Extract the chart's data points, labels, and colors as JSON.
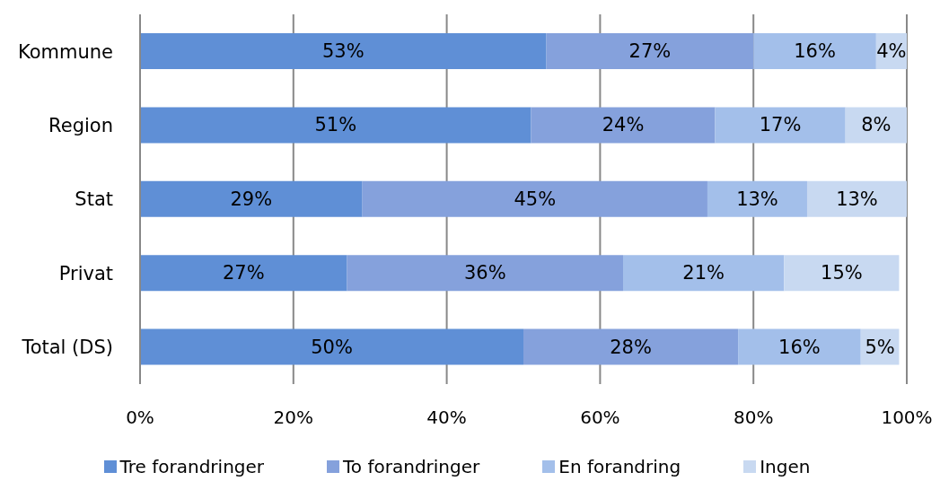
{
  "chart_data": {
    "type": "bar",
    "orientation": "horizontal",
    "stacked": true,
    "categories": [
      "Kommune",
      "Region",
      "Stat",
      "Privat",
      "Total (DS)"
    ],
    "series": [
      {
        "name": "Tre forandringer",
        "color": "#5f8fd6",
        "values": [
          53,
          51,
          29,
          27,
          50
        ],
        "value_labels": [
          "53%",
          "51%",
          "29%",
          "27%",
          "50%"
        ]
      },
      {
        "name": "To forandringer",
        "color": "#85a1dc",
        "values": [
          27,
          24,
          45,
          36,
          28
        ],
        "value_labels": [
          "27%",
          "24%",
          "45%",
          "36%",
          "28%"
        ]
      },
      {
        "name": "En forandring",
        "color": "#a3bfea",
        "values": [
          16,
          17,
          13,
          21,
          16
        ],
        "value_labels": [
          "16%",
          "17%",
          "13%",
          "21%",
          "16%"
        ]
      },
      {
        "name": "Ingen",
        "color": "#c8d9f1",
        "values": [
          4,
          8,
          13,
          15,
          5
        ],
        "value_labels": [
          "4%",
          "8%",
          "13%",
          "15%",
          "5%"
        ]
      }
    ],
    "xlim": [
      0,
      100
    ],
    "xticks": [
      {
        "value": 0,
        "label": "0%"
      },
      {
        "value": 20,
        "label": "20%"
      },
      {
        "value": 40,
        "label": "40%"
      },
      {
        "value": 60,
        "label": "60%"
      },
      {
        "value": 80,
        "label": "80%"
      },
      {
        "value": 100,
        "label": "100%"
      }
    ],
    "grid": "x",
    "legend": "bottom"
  }
}
